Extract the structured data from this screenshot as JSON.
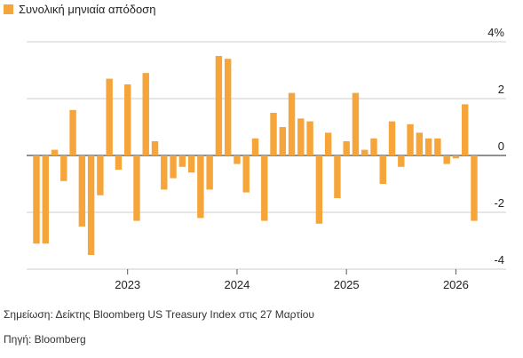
{
  "chart_data": {
    "type": "bar",
    "legend": "Συνολική μηνιαία απόδοση",
    "color": "#f5a53a",
    "categories": [
      null,
      null,
      null,
      null,
      null,
      null,
      null,
      null,
      null,
      null,
      "2023",
      null,
      null,
      null,
      null,
      null,
      null,
      null,
      null,
      null,
      null,
      null,
      "2024",
      null,
      null,
      null,
      null,
      null,
      null,
      null,
      null,
      null,
      null,
      null,
      "2025",
      null,
      null,
      null,
      null,
      null,
      null,
      null,
      null,
      null,
      null,
      null,
      "2026",
      null,
      null
    ],
    "values": [
      -3.1,
      -3.1,
      0.2,
      -0.9,
      1.6,
      -2.5,
      -3.5,
      -1.4,
      2.7,
      -0.5,
      2.5,
      -2.3,
      2.9,
      0.5,
      -1.2,
      -0.8,
      -0.4,
      -0.6,
      -2.2,
      -1.2,
      3.5,
      3.4,
      -0.3,
      -1.3,
      0.6,
      -2.3,
      1.5,
      1.0,
      2.2,
      1.3,
      1.2,
      -2.4,
      0.8,
      -1.5,
      0.5,
      2.2,
      0.2,
      0.6,
      -1.0,
      1.2,
      -0.4,
      1.1,
      0.8,
      0.6,
      0.6,
      -0.3,
      -0.1,
      1.8,
      -2.3
    ],
    "ylim": [
      -4.1,
      4
    ],
    "yticks": [
      {
        "value": 4,
        "label": "4%"
      },
      2,
      0,
      -2,
      -4
    ],
    "grid": true,
    "note": "Σημείωση: Δείκτης Bloomberg US Treasury Index στις 27 Μαρτίου",
    "source": "Πηγή: Bloomberg"
  }
}
